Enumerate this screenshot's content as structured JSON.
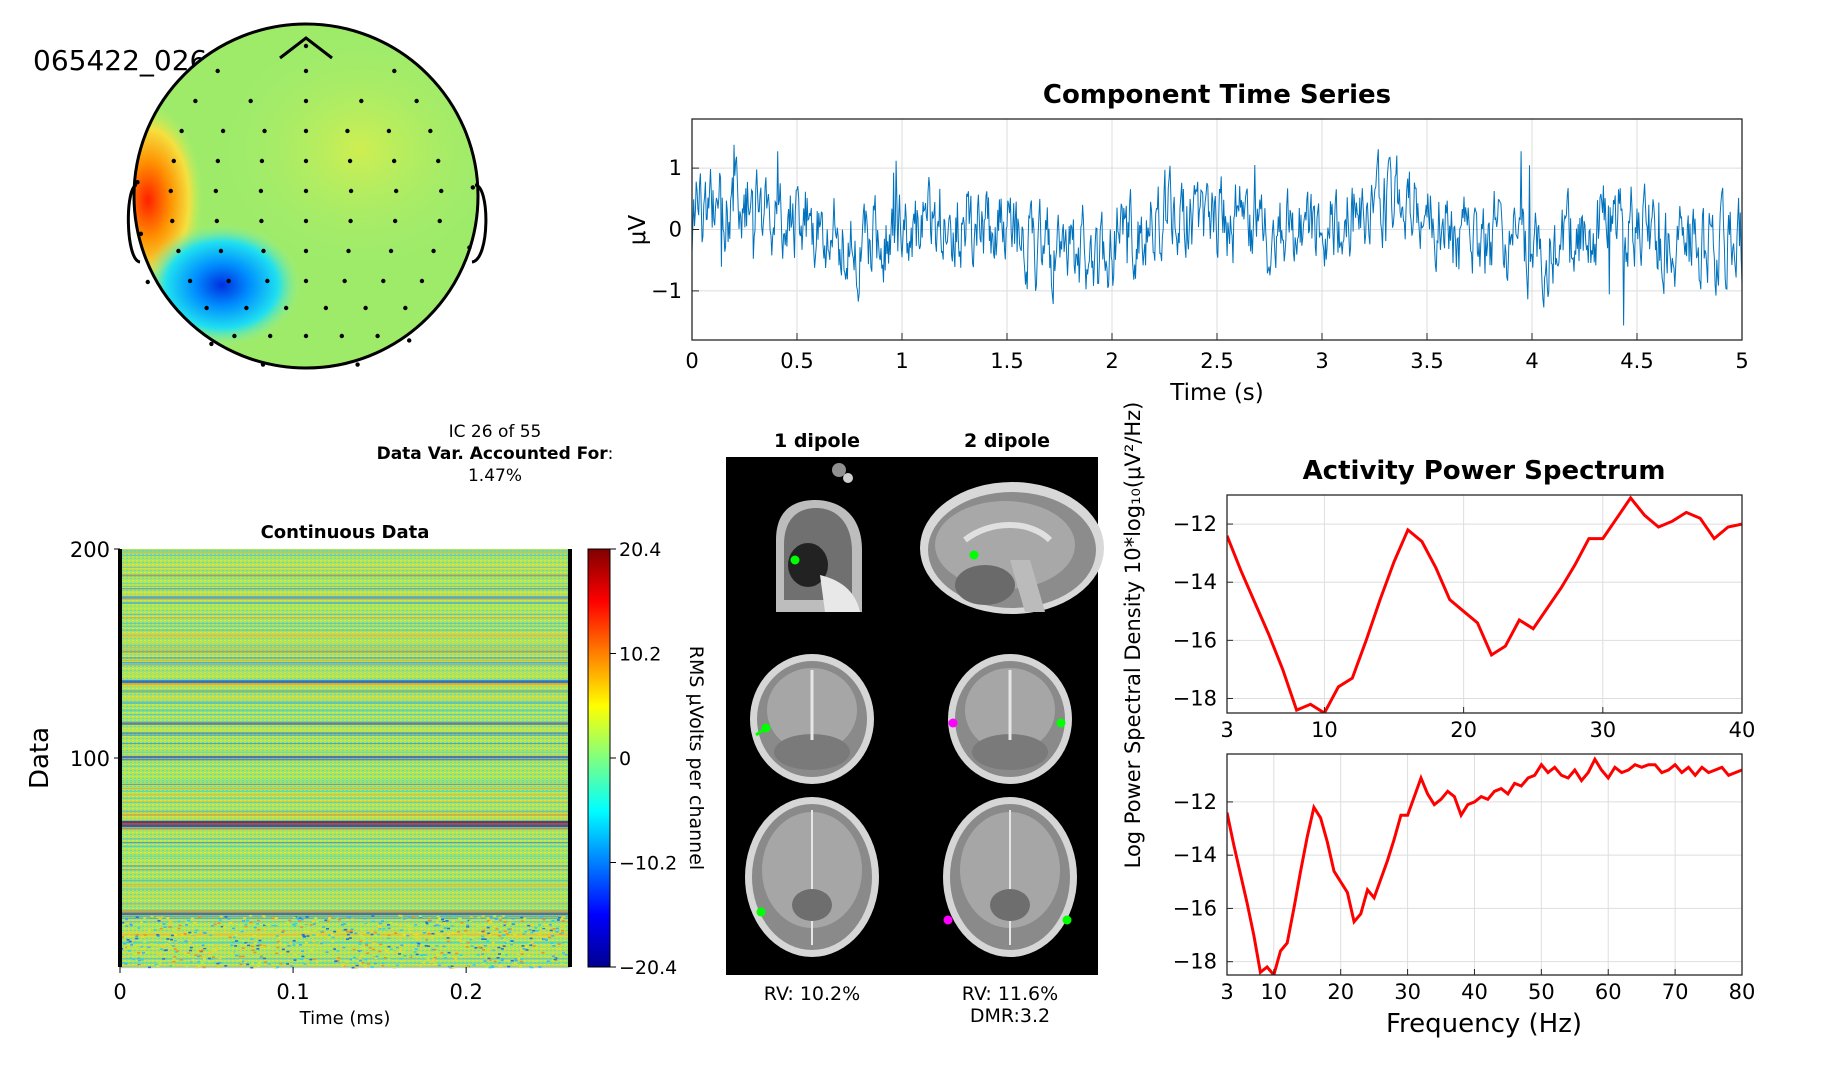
{
  "component_id": "065422_026",
  "ic_info": {
    "line1": "IC 26 of 55",
    "line2_bold": "Data Var. Accounted For",
    "line2_rest": ":",
    "line3": "1.47%"
  },
  "colors": {
    "timeseries": "#0072bd",
    "spectrum": "#ff0000",
    "dipole_green": "#00ff00",
    "dipole_magenta": "#ff00ff"
  },
  "dipole": {
    "col1_title": "1 dipole",
    "col2_title": "2 dipole",
    "rv1": "RV: 10.2%",
    "rv2": "RV: 11.6%",
    "dmr": "DMR:3.2"
  },
  "chart_data": [
    {
      "type": "topoplot",
      "description_label": "065422_026",
      "colormap": "jet",
      "features": [
        "red focus at left temporal edge",
        "blue focus at left posterior"
      ]
    },
    {
      "type": "line",
      "title": "Component Time Series",
      "xlabel": "Time (s)",
      "ylabel": "μV",
      "xlim": [
        0,
        5
      ],
      "ylim": [
        -1.8,
        1.8
      ],
      "xticks": [
        "0",
        "0.5",
        "1",
        "1.5",
        "2",
        "2.5",
        "3",
        "3.5",
        "4",
        "4.5",
        "5"
      ],
      "yticks": [
        "1",
        "0",
        "−1"
      ],
      "grid": true,
      "series": [
        {
          "style": "noisy EEG trace, amplitude roughly ±1.3 μV"
        }
      ]
    },
    {
      "type": "heatmap",
      "title": "Continuous Data",
      "xlabel": "Time (ms)",
      "ylabel": "Data",
      "xlim": [
        0,
        0.26
      ],
      "ylim": [
        0,
        200
      ],
      "xticks": [
        "0",
        "0.1",
        "0.2"
      ],
      "yticks": [
        "200",
        "100"
      ],
      "colorbar": {
        "label": "RMS μVolts per channel",
        "ticks": [
          "20.4",
          "10.2",
          "0",
          "−10.2",
          "−20.4"
        ],
        "range": [
          -20.4,
          20.4
        ]
      }
    },
    {
      "type": "line",
      "title": "Activity Power Spectrum",
      "ylabel": "Log Power Spectral Density 10*log₁₀(μV²/Hz)",
      "panels": [
        {
          "xlim": [
            3,
            40
          ],
          "ylim": [
            -18.5,
            -11
          ],
          "xticks": [
            "3",
            "10",
            "20",
            "30",
            "40"
          ],
          "yticks": [
            "−12",
            "−14",
            "−16",
            "−18"
          ],
          "series": [
            {
              "x": [
                3,
                4,
                5,
                6,
                7,
                8,
                9,
                10,
                11,
                12,
                13,
                14,
                15,
                16,
                17,
                18,
                19,
                20,
                21,
                22,
                23,
                24,
                25,
                26,
                27,
                28,
                29,
                30,
                31,
                32,
                33,
                34,
                35,
                36,
                37,
                38,
                39,
                40
              ],
              "values": [
                -12.4,
                -13.6,
                -14.7,
                -15.8,
                -17.0,
                -18.4,
                -18.2,
                -18.5,
                -17.6,
                -17.3,
                -16.0,
                -14.6,
                -13.3,
                -12.2,
                -12.6,
                -13.5,
                -14.6,
                -15.0,
                -15.4,
                -16.5,
                -16.2,
                -15.3,
                -15.6,
                -14.9,
                -14.2,
                -13.4,
                -12.5,
                -12.5,
                -11.8,
                -11.1,
                -11.7,
                -12.1,
                -11.9,
                -11.6,
                -11.8,
                -12.5,
                -12.1,
                -12.0
              ],
              "color": "#ff0000"
            }
          ]
        },
        {
          "xlim": [
            3,
            80
          ],
          "ylim": [
            -18.5,
            -10.2
          ],
          "xticks": [
            "3",
            "10",
            "20",
            "30",
            "40",
            "50",
            "60",
            "70",
            "80"
          ],
          "yticks": [
            "−12",
            "−14",
            "−16",
            "−18"
          ],
          "xlabel": "Frequency (Hz)",
          "series": [
            {
              "x": [
                3,
                4,
                5,
                6,
                7,
                8,
                9,
                10,
                11,
                12,
                13,
                14,
                15,
                16,
                17,
                18,
                19,
                20,
                21,
                22,
                23,
                24,
                25,
                26,
                27,
                28,
                29,
                30,
                31,
                32,
                33,
                34,
                35,
                36,
                37,
                38,
                39,
                40,
                41,
                42,
                43,
                44,
                45,
                46,
                47,
                48,
                49,
                50,
                51,
                52,
                53,
                54,
                55,
                56,
                57,
                58,
                59,
                60,
                61,
                62,
                63,
                64,
                65,
                66,
                67,
                68,
                69,
                70,
                71,
                72,
                73,
                74,
                75,
                76,
                77,
                78,
                79,
                80
              ],
              "values": [
                -12.4,
                -13.6,
                -14.7,
                -15.8,
                -17.0,
                -18.4,
                -18.2,
                -18.5,
                -17.6,
                -17.3,
                -16.0,
                -14.6,
                -13.3,
                -12.2,
                -12.6,
                -13.5,
                -14.6,
                -15.0,
                -15.4,
                -16.5,
                -16.2,
                -15.3,
                -15.6,
                -14.9,
                -14.2,
                -13.4,
                -12.5,
                -12.5,
                -11.8,
                -11.1,
                -11.7,
                -12.1,
                -11.9,
                -11.6,
                -11.8,
                -12.5,
                -12.1,
                -12.0,
                -11.8,
                -11.9,
                -11.6,
                -11.5,
                -11.7,
                -11.3,
                -11.4,
                -11.1,
                -11.0,
                -10.6,
                -10.9,
                -10.7,
                -11.0,
                -11.1,
                -10.8,
                -11.2,
                -10.9,
                -10.4,
                -10.8,
                -11.1,
                -10.7,
                -10.9,
                -10.8,
                -10.6,
                -10.7,
                -10.6,
                -10.6,
                -10.9,
                -10.8,
                -10.6,
                -10.9,
                -10.7,
                -11.0,
                -10.7,
                -10.9,
                -10.8,
                -10.7,
                -11.0,
                -10.9,
                -10.8
              ],
              "color": "#ff0000"
            }
          ]
        }
      ]
    }
  ]
}
